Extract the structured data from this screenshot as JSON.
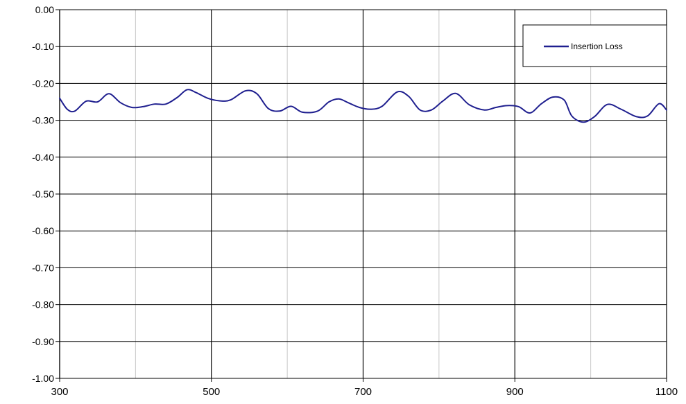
{
  "chart_data": {
    "type": "line",
    "title": "",
    "xlabel": "",
    "ylabel": "",
    "xlim": [
      300,
      1100
    ],
    "ylim": [
      -1.0,
      0.0
    ],
    "x_ticks": [
      "300",
      "500",
      "700",
      "900",
      "1100"
    ],
    "y_ticks": [
      "0.00",
      "-0.10",
      "-0.20",
      "-0.30",
      "-0.40",
      "-0.50",
      "-0.60",
      "-0.70",
      "-0.80",
      "-0.90",
      "-1.00"
    ],
    "grid": {
      "horizontal": true,
      "vertical": true
    },
    "legend": {
      "position": "top-right",
      "entries": [
        "Insertion Loss"
      ]
    },
    "series": [
      {
        "name": "Insertion Loss",
        "color": "#1f1f8f",
        "x": [
          300,
          310,
          320,
          335,
          350,
          365,
          380,
          395,
          410,
          425,
          440,
          455,
          468,
          480,
          495,
          510,
          525,
          545,
          560,
          575,
          590,
          605,
          620,
          640,
          655,
          668,
          680,
          695,
          710,
          725,
          745,
          760,
          775,
          790,
          805,
          822,
          840,
          860,
          875,
          890,
          905,
          920,
          935,
          950,
          965,
          975,
          990,
          1005,
          1022,
          1040,
          1060,
          1075,
          1090,
          1100
        ],
        "values": [
          -0.24,
          -0.27,
          -0.275,
          -0.248,
          -0.25,
          -0.228,
          -0.252,
          -0.265,
          -0.263,
          -0.256,
          -0.256,
          -0.238,
          -0.217,
          -0.225,
          -0.24,
          -0.247,
          -0.245,
          -0.22,
          -0.228,
          -0.268,
          -0.275,
          -0.262,
          -0.278,
          -0.275,
          -0.25,
          -0.242,
          -0.252,
          -0.265,
          -0.27,
          -0.262,
          -0.223,
          -0.235,
          -0.272,
          -0.272,
          -0.248,
          -0.227,
          -0.258,
          -0.272,
          -0.265,
          -0.26,
          -0.263,
          -0.28,
          -0.255,
          -0.237,
          -0.245,
          -0.288,
          -0.305,
          -0.29,
          -0.257,
          -0.27,
          -0.29,
          -0.288,
          -0.255,
          -0.272
        ]
      }
    ]
  }
}
